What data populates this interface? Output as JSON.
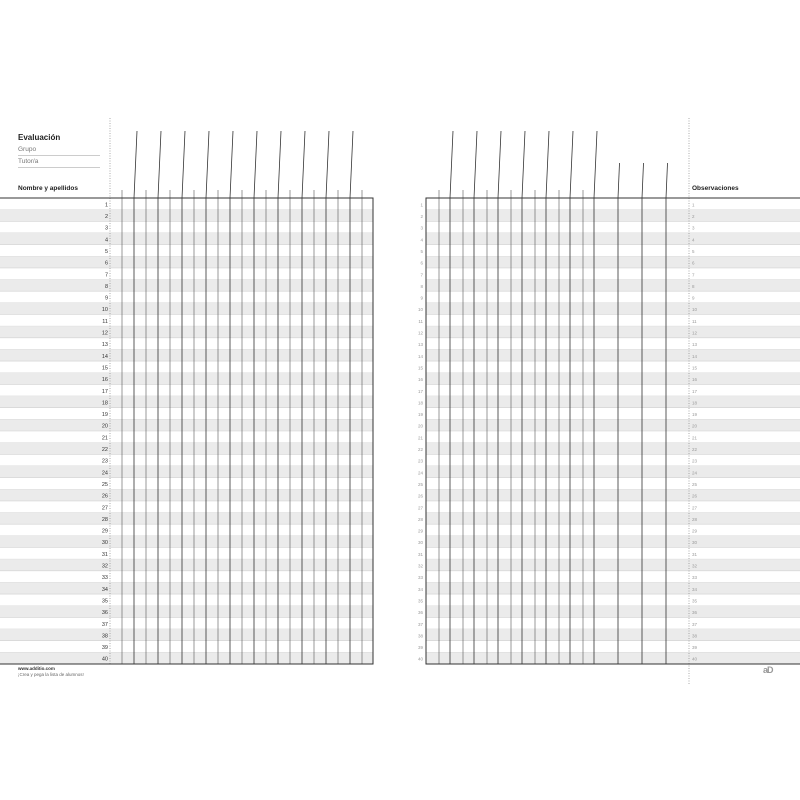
{
  "header": {
    "title": "Evaluación",
    "group_label": "Grupo",
    "tutor_label": "Tutor/a",
    "names_header": "Nombre y apellidos",
    "observations_header": "Observaciones"
  },
  "row_numbers": [
    1,
    2,
    3,
    4,
    5,
    6,
    7,
    8,
    9,
    10,
    11,
    12,
    13,
    14,
    15,
    16,
    17,
    18,
    19,
    20,
    21,
    22,
    23,
    24,
    25,
    26,
    27,
    28,
    29,
    30,
    31,
    32,
    33,
    34,
    35,
    36,
    37,
    38,
    39,
    40
  ],
  "footer": {
    "website": "www.additio.com",
    "tagline": "¡Crea y pega la lista de alumnos!",
    "logo": "aD"
  },
  "colors": {
    "row_shade": "#ebebeb",
    "grid_line": "#333333",
    "dotted": "#888888"
  }
}
